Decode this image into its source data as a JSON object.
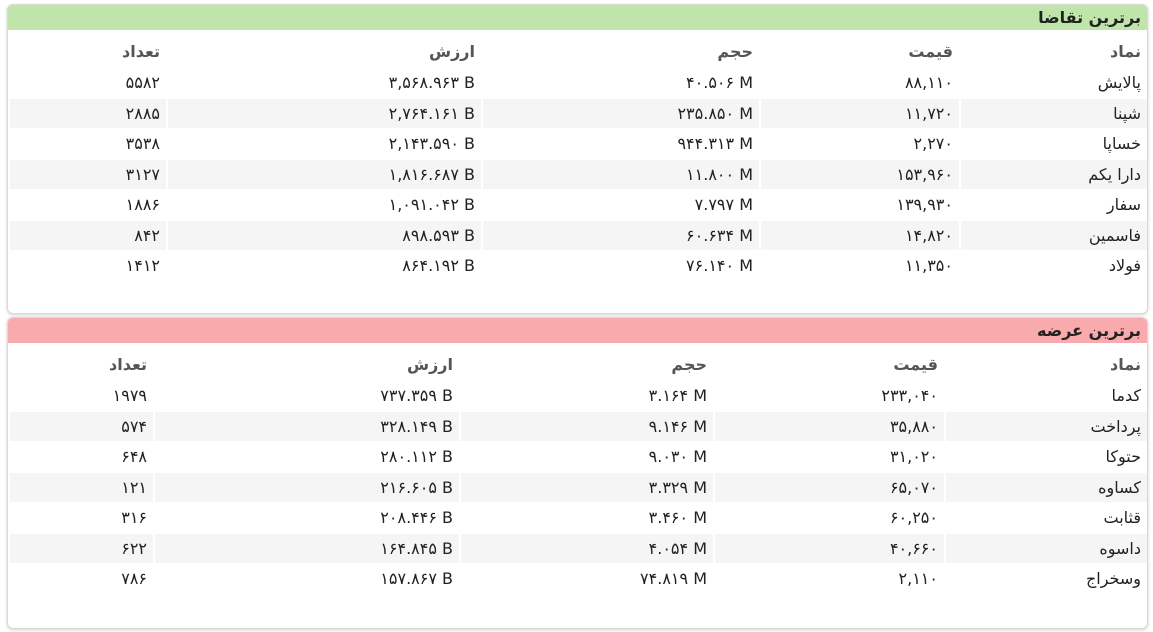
{
  "panels": [
    {
      "title": "برترین تقاضا",
      "columns": [
        "نماد",
        "قیمت",
        "حجم",
        "ارزش",
        "تعداد"
      ],
      "rows": [
        [
          "پالایش",
          "۸۸,۱۱۰",
          "۴۰.۵۰۶ M",
          "۳,۵۶۸.۹۶۳ B",
          "۵۵۸۲"
        ],
        [
          "شپنا",
          "۱۱,۷۲۰",
          "۲۳۵.۸۵۰ M",
          "۲,۷۶۴.۱۶۱ B",
          "۲۸۸۵"
        ],
        [
          "خساپا",
          "۲,۲۷۰",
          "۹۴۴.۳۱۳ M",
          "۲,۱۴۳.۵۹۰ B",
          "۳۵۳۸"
        ],
        [
          "دارا یکم",
          "۱۵۳,۹۶۰",
          "۱۱.۸۰۰ M",
          "۱,۸۱۶.۶۸۷ B",
          "۳۱۲۷"
        ],
        [
          "سفار",
          "۱۳۹,۹۳۰",
          "۷.۷۹۷ M",
          "۱,۰۹۱.۰۴۲ B",
          "۱۸۸۶"
        ],
        [
          "فاسمین",
          "۱۴,۸۲۰",
          "۶۰.۶۳۴ M",
          "۸۹۸.۵۹۳ B",
          "۸۴۲"
        ],
        [
          "فولاد",
          "۱۱,۳۵۰",
          "۷۶.۱۴۰ M",
          "۸۶۴.۱۹۲ B",
          "۱۴۱۲"
        ]
      ]
    },
    {
      "title": "برترین عرضه",
      "columns": [
        "نماد",
        "قیمت",
        "حجم",
        "ارزش",
        "تعداد"
      ],
      "rows": [
        [
          "کدما",
          "۲۳۳,۰۴۰",
          "۳.۱۶۴ M",
          "۷۳۷.۳۵۹ B",
          "۱۹۷۹"
        ],
        [
          "پرداخت",
          "۳۵,۸۸۰",
          "۹.۱۴۶ M",
          "۳۲۸.۱۴۹ B",
          "۵۷۴"
        ],
        [
          "حتوکا",
          "۳۱,۰۲۰",
          "۹.۰۳۰ M",
          "۲۸۰.۱۱۲ B",
          "۶۴۸"
        ],
        [
          "کساوه",
          "۶۵,۰۷۰",
          "۳.۳۲۹ M",
          "۲۱۶.۶۰۵ B",
          "۱۲۱"
        ],
        [
          "قثابت",
          "۶۰,۲۵۰",
          "۳.۴۶۰ M",
          "۲۰۸.۴۴۶ B",
          "۳۱۶"
        ],
        [
          "داسوه",
          "۴۰,۶۶۰",
          "۴.۰۵۴ M",
          "۱۶۴.۸۴۵ B",
          "۶۲۲"
        ],
        [
          "وسخراج",
          "۲,۱۱۰",
          "۷۴.۸۱۹ M",
          "۱۵۷.۸۶۷ B",
          "۷۸۶"
        ]
      ]
    }
  ]
}
